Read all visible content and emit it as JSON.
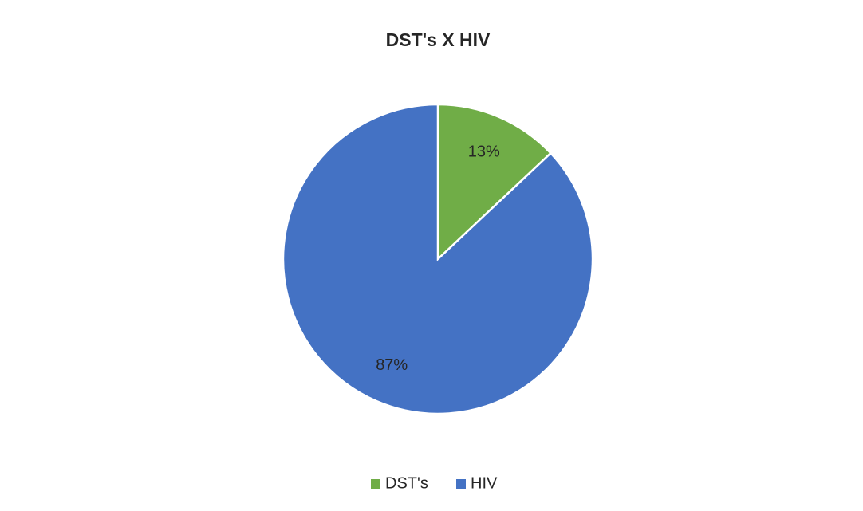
{
  "chart_data": {
    "type": "pie",
    "title": "DST's X HIV",
    "categories": [
      "DST's",
      "HIV"
    ],
    "values": [
      13,
      87
    ],
    "value_labels": [
      "13%",
      "87%"
    ],
    "colors": [
      "#70ad47",
      "#4472c4"
    ],
    "legend": "bottom"
  }
}
